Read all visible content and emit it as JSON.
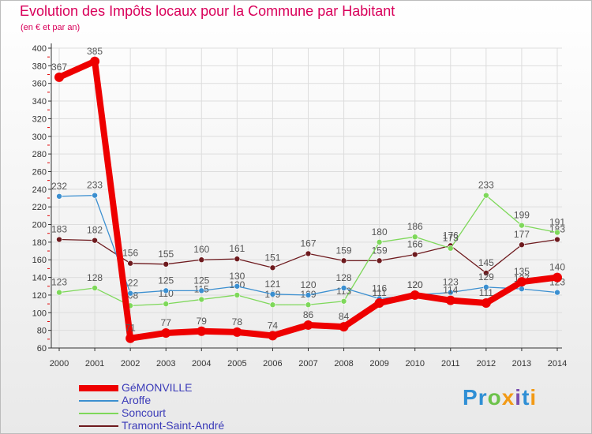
{
  "title": "Evolution des Impôts locaux pour la Commune par Habitant",
  "subtitle": "(en € et par an)",
  "logo_text": "Proxiti",
  "colors": {
    "title": "#d9005a",
    "axis": "#333333",
    "grid": "#dddddd",
    "tick_mark": "#e00000",
    "legend_text": "#3a3ab8"
  },
  "chart_data": {
    "type": "line",
    "title": "Evolution des Impôts locaux pour la Commune par Habitant",
    "ylabel": "(en € et par an)",
    "xlabel": "",
    "x": [
      "2000",
      "2001",
      "2002",
      "2003",
      "2004",
      "2005",
      "2006",
      "2007",
      "2008",
      "2009",
      "2010",
      "2011",
      "2012",
      "2013",
      "2014"
    ],
    "ylim": [
      60,
      400
    ],
    "yticks": [
      "60",
      "80",
      "100",
      "120",
      "140",
      "160",
      "180",
      "200",
      "220",
      "240",
      "260",
      "280",
      "300",
      "320",
      "340",
      "360",
      "380",
      "400"
    ],
    "grid": true,
    "legend_position": "bottom-left",
    "series": [
      {
        "name": "Tramont-Saint-André",
        "color": "#6e1a1e",
        "weight": "thin",
        "values": [
          183,
          182,
          156,
          155,
          160,
          161,
          151,
          167,
          159,
          159,
          166,
          176,
          145,
          177,
          183
        ],
        "labels": [
          "183",
          "182",
          "156",
          "155",
          "160",
          "161",
          "151",
          "167",
          "159",
          "159",
          "166",
          "176",
          "145",
          "177",
          "183"
        ]
      },
      {
        "name": "Soncourt",
        "color": "#7ed85a",
        "weight": "thin",
        "values": [
          123,
          128,
          108,
          110,
          115,
          120,
          109,
          109,
          113,
          180,
          186,
          173,
          233,
          199,
          191
        ],
        "labels": [
          "123",
          "128",
          "108",
          "110",
          "115",
          "120",
          "109",
          "109",
          "113",
          "180",
          "186",
          "173",
          "233",
          "199",
          "191"
        ]
      },
      {
        "name": "Aroffe",
        "color": "#3b8fd0",
        "weight": "thin",
        "values": [
          232,
          233,
          122,
          125,
          125,
          130,
          121,
          120,
          128,
          116,
          120,
          123,
          129,
          127,
          123
        ],
        "labels": [
          "232",
          "233",
          "122",
          "125",
          "125",
          "130",
          "121",
          "120",
          "128",
          "116",
          "120",
          "123",
          "129",
          "127",
          "123"
        ]
      },
      {
        "name": "GéMONVILLE",
        "color": "#ee0000",
        "weight": "thick",
        "values": [
          367,
          385,
          71,
          77,
          79,
          78,
          74,
          86,
          84,
          111,
          120,
          114,
          111,
          135,
          140
        ],
        "labels": [
          "367",
          "385",
          "71",
          "77",
          "79",
          "78",
          "74",
          "86",
          "84",
          "111",
          "120",
          "114",
          "111",
          "135",
          "140"
        ]
      }
    ],
    "legend_order": [
      "GéMONVILLE",
      "Aroffe",
      "Soncourt",
      "Tramont-Saint-André"
    ]
  }
}
